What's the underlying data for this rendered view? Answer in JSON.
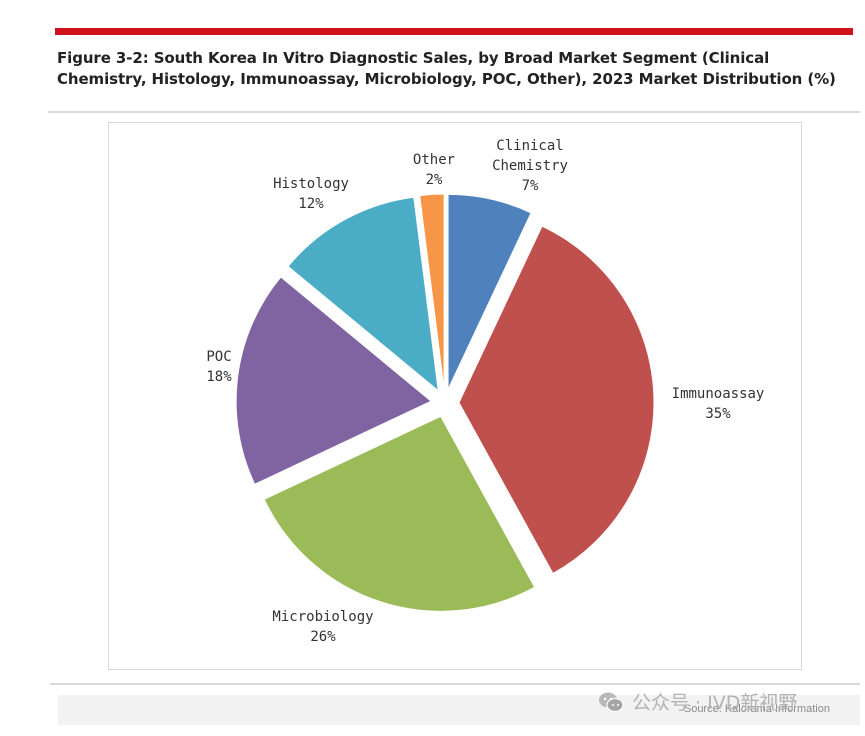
{
  "figure": {
    "title": "Figure 3-2: South Korea In Vitro Diagnostic Sales, by Broad Market Segment (Clinical Chemistry, Histology, Immunoassay, Microbiology, POC, Other), 2023 Market Distribution (%)",
    "source": "Source: Kalorama Information",
    "watermark": "公众号 · IVD新视野",
    "accent_color": "#d0121c"
  },
  "chart_data": {
    "type": "pie",
    "title": "",
    "slices": [
      {
        "name": "Clinical Chemistry",
        "label_lines": [
          "Clinical",
          "Chemistry"
        ],
        "value": 7,
        "value_label": "7%",
        "color": "#4f81bd"
      },
      {
        "name": "Immunoassay",
        "label_lines": [
          "Immunoassay"
        ],
        "value": 35,
        "value_label": "35%",
        "color": "#c0504d"
      },
      {
        "name": "Microbiology",
        "label_lines": [
          "Microbiology"
        ],
        "value": 26,
        "value_label": "26%",
        "color": "#9bbb59"
      },
      {
        "name": "POC",
        "label_lines": [
          "POC"
        ],
        "value": 18,
        "value_label": "18%",
        "color": "#8064a2"
      },
      {
        "name": "Histology",
        "label_lines": [
          "Histology"
        ],
        "value": 12,
        "value_label": "12%",
        "color": "#4bacc6"
      },
      {
        "name": "Other",
        "label_lines": [
          "Other"
        ],
        "value": 2,
        "value_label": "2%",
        "color": "#f79646"
      }
    ],
    "exploded": true,
    "start_angle": "12 o'clock",
    "direction": "clockwise"
  }
}
